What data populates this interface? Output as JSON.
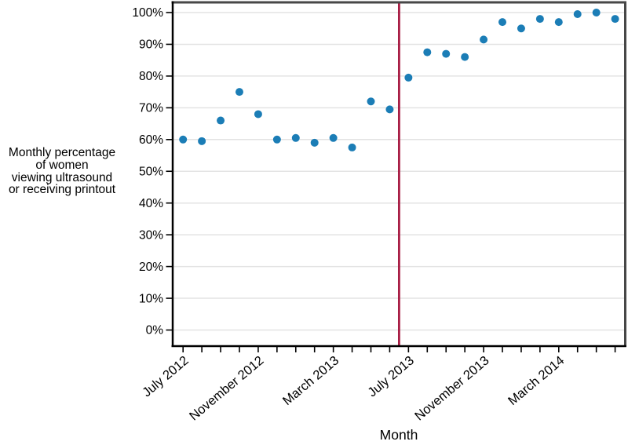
{
  "labels": {
    "ylabel_lines": [
      "Monthly percentage",
      "of women",
      "viewing ultrasound",
      "or receiving printout"
    ],
    "xlabel": "Month"
  },
  "chart_data": {
    "type": "scatter",
    "title": "",
    "xlabel": "Month",
    "ylabel": "Monthly percentage of women viewing ultrasound or receiving printout",
    "months": [
      "July 2012",
      "August 2012",
      "September 2012",
      "October 2012",
      "November 2012",
      "December 2012",
      "January 2013",
      "February 2013",
      "March 2013",
      "April 2013",
      "May 2013",
      "June 2013",
      "July 2013",
      "August 2013",
      "September 2013",
      "October 2013",
      "November 2013",
      "December 2013",
      "January 2014",
      "February 2014",
      "March 2014",
      "April 2014",
      "May 2014",
      "June 2014"
    ],
    "values": [
      60,
      59.5,
      66,
      75,
      68,
      60,
      60.5,
      59,
      60.5,
      57.5,
      72,
      69.5,
      79.5,
      87.5,
      87,
      86,
      91.5,
      97,
      95,
      98,
      97,
      99.5,
      100,
      98
    ],
    "ylim": [
      0,
      100
    ],
    "grid": "horizontal",
    "legend": "none",
    "y_ticks": [
      {
        "value": 0,
        "label": "0%"
      },
      {
        "value": 10,
        "label": "10%"
      },
      {
        "value": 20,
        "label": "20%"
      },
      {
        "value": 30,
        "label": "30%"
      },
      {
        "value": 40,
        "label": "40%"
      },
      {
        "value": 50,
        "label": "50%"
      },
      {
        "value": 60,
        "label": "60%"
      },
      {
        "value": 70,
        "label": "70%"
      },
      {
        "value": 80,
        "label": "80%"
      },
      {
        "value": 90,
        "label": "90%"
      },
      {
        "value": 100,
        "label": "100%"
      }
    ],
    "x_labeled_ticks": [
      {
        "month_index": 0,
        "label": "July 2012"
      },
      {
        "month_index": 4,
        "label": "November 2012"
      },
      {
        "month_index": 8,
        "label": "March 2013"
      },
      {
        "month_index": 12,
        "label": "July 2013"
      },
      {
        "month_index": 16,
        "label": "November 2013"
      },
      {
        "month_index": 20,
        "label": "March 2014"
      }
    ],
    "intervention_line": {
      "between_month_indices": [
        11,
        12
      ],
      "color": "#a81e45"
    },
    "colors": {
      "point": "#1b7db6",
      "grid": "#e3e3e3",
      "axis": "#000000",
      "frame": "#474747",
      "text": "#000000"
    }
  }
}
